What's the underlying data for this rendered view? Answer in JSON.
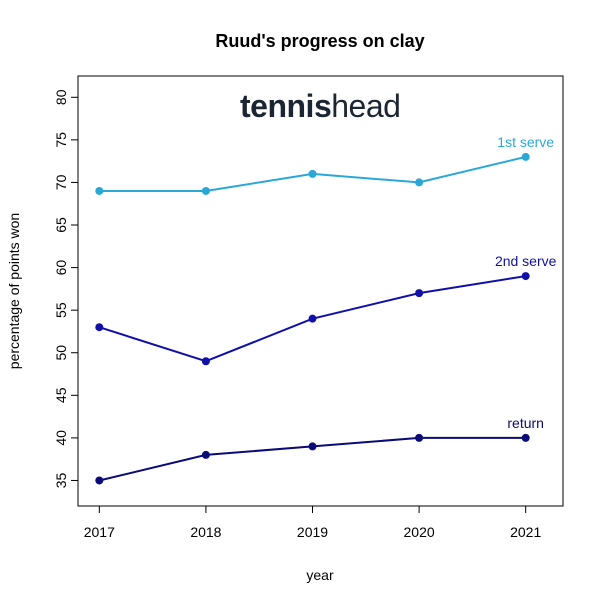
{
  "chart_data": {
    "type": "line",
    "title": "Ruud's progress on clay",
    "xlabel": "year",
    "ylabel": "percentage of points won",
    "x": [
      2017,
      2018,
      2019,
      2020,
      2021
    ],
    "xticks": [
      "2017",
      "2018",
      "2019",
      "2020",
      "2021"
    ],
    "yticks": [
      35,
      40,
      45,
      50,
      55,
      60,
      65,
      70,
      75,
      80
    ],
    "xlim": [
      2016.8,
      2021.35
    ],
    "ylim": [
      32,
      82.5
    ],
    "grid": false,
    "series": [
      {
        "name": "1st serve",
        "color": "#29a8d8",
        "values": [
          69,
          69,
          71,
          70,
          73
        ]
      },
      {
        "name": "2nd serve",
        "color": "#1010a8",
        "values": [
          53,
          49,
          54,
          57,
          59
        ]
      },
      {
        "name": "return",
        "color": "#0a0a78",
        "values": [
          35,
          38,
          39,
          40,
          40
        ]
      }
    ]
  },
  "watermark": {
    "text_bold": "tennis",
    "text_light": "head",
    "color": "#1c2632"
  }
}
